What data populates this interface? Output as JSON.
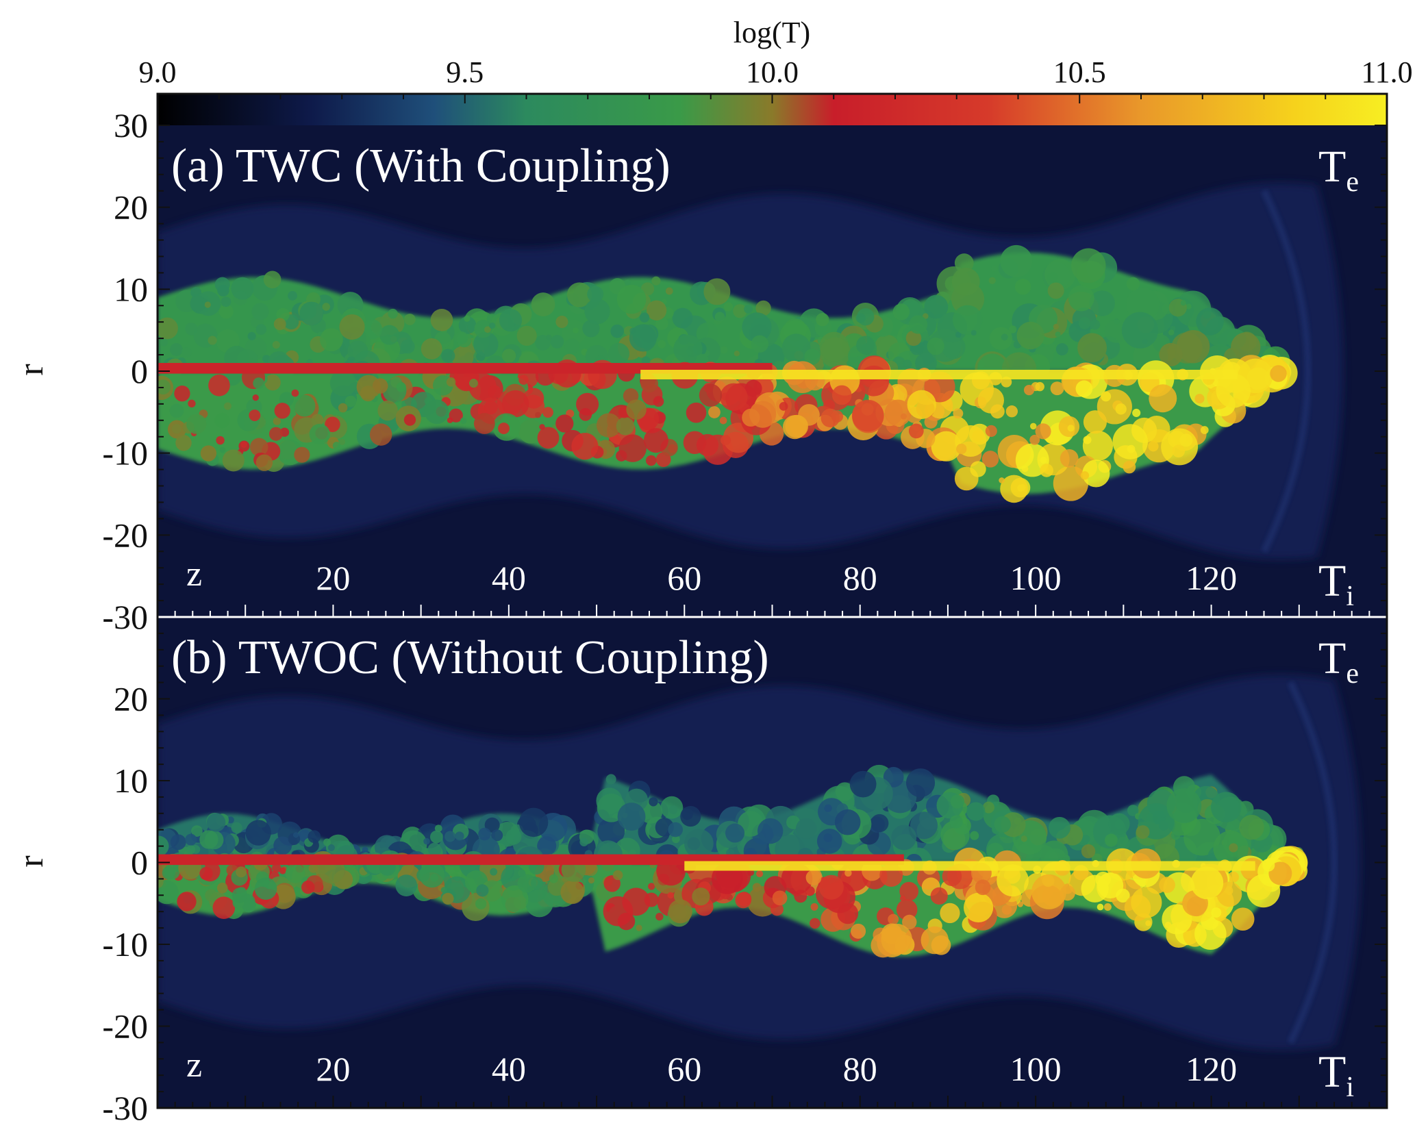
{
  "chart_data": {
    "type": "heatmap",
    "colorbar": {
      "label": "log(T)",
      "range": [
        9.0,
        11.0
      ],
      "ticks": [
        "9.0",
        "9.5",
        "10.0",
        "10.5",
        "11.0"
      ],
      "colors": [
        {
          "v": 9.0,
          "c": "#000000"
        },
        {
          "v": 9.25,
          "c": "#0e1a4a"
        },
        {
          "v": 9.45,
          "c": "#1f4f7a"
        },
        {
          "v": 9.6,
          "c": "#2c8a5e"
        },
        {
          "v": 9.85,
          "c": "#3a9a48"
        },
        {
          "v": 10.0,
          "c": "#8a7a2a"
        },
        {
          "v": 10.1,
          "c": "#c81e2a"
        },
        {
          "v": 10.35,
          "c": "#d63a2a"
        },
        {
          "v": 10.6,
          "c": "#e9982a"
        },
        {
          "v": 10.85,
          "c": "#f6d21c"
        },
        {
          "v": 11.0,
          "c": "#f7ee22"
        }
      ]
    },
    "panels": [
      {
        "label": "(a) TWC (With Coupling)",
        "top_label": "T",
        "top_sub": "e",
        "bottom_label": "T",
        "bottom_sub": "i",
        "z_label": "z",
        "z_ticks": [
          "20",
          "40",
          "60",
          "80",
          "100",
          "120"
        ],
        "ylabel": "r",
        "yticks": [
          "30",
          "20",
          "10",
          "0",
          "-10",
          "-20",
          "-30"
        ],
        "ylim": [
          -30,
          30
        ],
        "zlim": [
          0,
          140
        ],
        "jet_extent_z": 128,
        "bow_shock_z": 134
      },
      {
        "label": "(b) TWOC (Without Coupling)",
        "top_label": "T",
        "top_sub": "e",
        "bottom_label": "T",
        "bottom_sub": "i",
        "z_label": "z",
        "z_ticks": [
          "20",
          "40",
          "60",
          "80",
          "100",
          "120"
        ],
        "ylabel": "r",
        "yticks": [
          "20",
          "10",
          "0",
          "-10",
          "-20",
          "-30"
        ],
        "ylim": [
          -30,
          30
        ],
        "zlim": [
          0,
          140
        ],
        "jet_extent_z": 130,
        "bow_shock_z": 137
      }
    ]
  }
}
